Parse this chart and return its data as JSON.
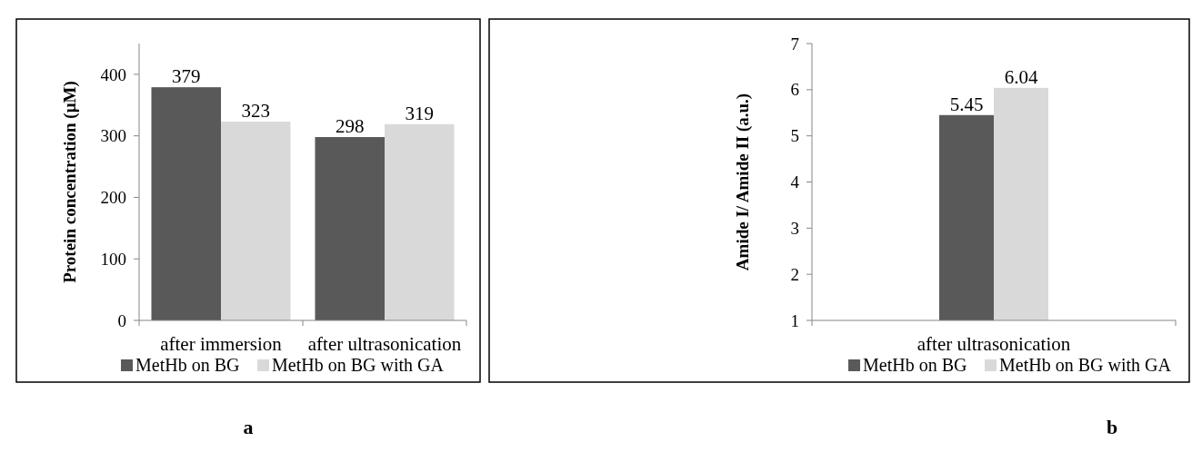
{
  "chart_data": [
    {
      "type": "bar",
      "categories": [
        "after immersion",
        "after ultrasonication"
      ],
      "ylabel": "Protein concentration (µM)",
      "ylim": [
        0,
        450
      ],
      "yticks": [
        0,
        100,
        200,
        300,
        400
      ],
      "data_labels": true,
      "legend": "bottom",
      "annotations": [
        "a"
      ],
      "series": [
        {
          "name": "MetHb on BG",
          "color": "#595959",
          "values": [
            379,
            298
          ]
        },
        {
          "name": "MetHb on BG with GA",
          "color": "#d9d9d9",
          "values": [
            323,
            319
          ]
        }
      ]
    },
    {
      "type": "bar",
      "categories": [
        "after ultrasonication"
      ],
      "ylabel": "Amide I/ Amide II (a.u.)",
      "ylim": [
        1,
        7
      ],
      "yticks": [
        1,
        2,
        3,
        4,
        5,
        6,
        7
      ],
      "data_labels": true,
      "legend": "bottom",
      "annotations": [
        "b"
      ],
      "series": [
        {
          "name": "MetHb on BG",
          "color": "#595959",
          "values": [
            5.45
          ]
        },
        {
          "name": "MetHb on BG with GA",
          "color": "#d9d9d9",
          "values": [
            6.04
          ]
        }
      ]
    }
  ]
}
